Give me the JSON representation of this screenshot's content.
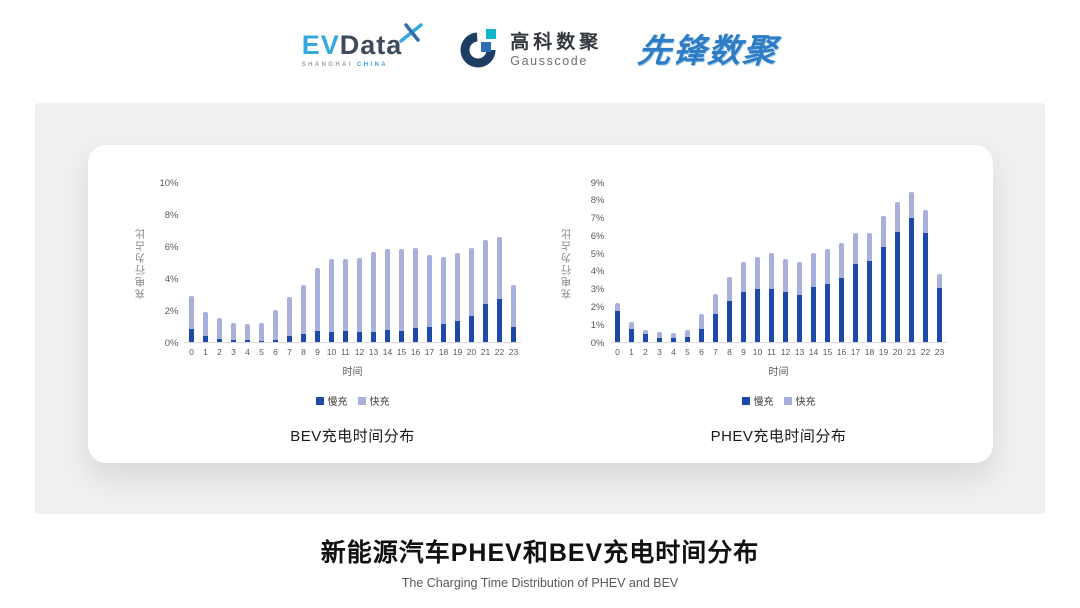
{
  "header": {
    "evdata": {
      "ev": "EV",
      "data": "Data",
      "sub_left": "SHANGHAI",
      "sub_right": "CHINA"
    },
    "gausscode": {
      "cn": "高科数聚",
      "en": "Gausscode"
    },
    "pioneer": {
      "text": "先锋数聚"
    }
  },
  "chart_data": [
    {
      "type": "bar",
      "stacked": true,
      "title": "BEV充电时间分布",
      "xlabel": "时间",
      "ylabel": "充电行为占比",
      "ymax": 10,
      "ylim": [
        0,
        10
      ],
      "grid": false,
      "legend_position": "bottom",
      "yticks": [
        "0%",
        "2%",
        "4%",
        "6%",
        "8%",
        "10%"
      ],
      "categories": [
        "0",
        "1",
        "2",
        "3",
        "4",
        "5",
        "6",
        "7",
        "8",
        "9",
        "10",
        "11",
        "12",
        "13",
        "14",
        "15",
        "16",
        "17",
        "18",
        "19",
        "20",
        "21",
        "22",
        "23"
      ],
      "series": [
        {
          "name": "慢充",
          "color": "#1C4AA6",
          "values": [
            0.8,
            0.35,
            0.2,
            0.1,
            0.1,
            0.05,
            0.15,
            0.35,
            0.5,
            0.7,
            0.65,
            0.7,
            0.6,
            0.65,
            0.75,
            0.7,
            0.85,
            0.95,
            1.1,
            1.3,
            1.6,
            2.35,
            2.7,
            0.95
          ]
        },
        {
          "name": "快充",
          "color": "#A8B0DB",
          "values": [
            2.1,
            1.55,
            1.3,
            1.1,
            1.0,
            1.15,
            1.85,
            2.45,
            3.05,
            3.9,
            4.55,
            4.5,
            4.65,
            4.95,
            5.05,
            5.1,
            5.0,
            4.5,
            4.2,
            4.25,
            4.3,
            4.0,
            3.85,
            2.6
          ]
        }
      ]
    },
    {
      "type": "bar",
      "stacked": true,
      "title": "PHEV充电时间分布",
      "xlabel": "时间",
      "ylabel": "充电行为占比",
      "ymax": 9,
      "ylim": [
        0,
        9
      ],
      "grid": false,
      "legend_position": "bottom",
      "yticks": [
        "0%",
        "1%",
        "2%",
        "3%",
        "4%",
        "5%",
        "6%",
        "7%",
        "8%",
        "9%"
      ],
      "categories": [
        "0",
        "1",
        "2",
        "3",
        "4",
        "5",
        "6",
        "7",
        "8",
        "9",
        "10",
        "11",
        "12",
        "13",
        "14",
        "15",
        "16",
        "17",
        "18",
        "19",
        "20",
        "21",
        "22",
        "23"
      ],
      "series": [
        {
          "name": "慢充",
          "color": "#1C4AA6",
          "values": [
            1.75,
            0.75,
            0.45,
            0.25,
            0.25,
            0.3,
            0.75,
            1.6,
            2.3,
            2.8,
            3.0,
            3.0,
            2.8,
            2.65,
            3.1,
            3.25,
            3.6,
            4.4,
            4.55,
            5.35,
            6.2,
            7.0,
            6.15,
            3.05
          ]
        },
        {
          "name": "快充",
          "color": "#A8B0DB",
          "values": [
            0.45,
            0.4,
            0.25,
            0.3,
            0.25,
            0.4,
            0.85,
            1.1,
            1.35,
            1.7,
            1.8,
            2.0,
            1.85,
            1.85,
            1.9,
            2.0,
            1.95,
            1.75,
            1.6,
            1.75,
            1.7,
            1.45,
            1.25,
            0.8
          ]
        }
      ]
    }
  ],
  "footer": {
    "title": "新能源汽车PHEV和BEV充电时间分布",
    "subtitle": "The Charging Time Distribution of PHEV and BEV"
  }
}
